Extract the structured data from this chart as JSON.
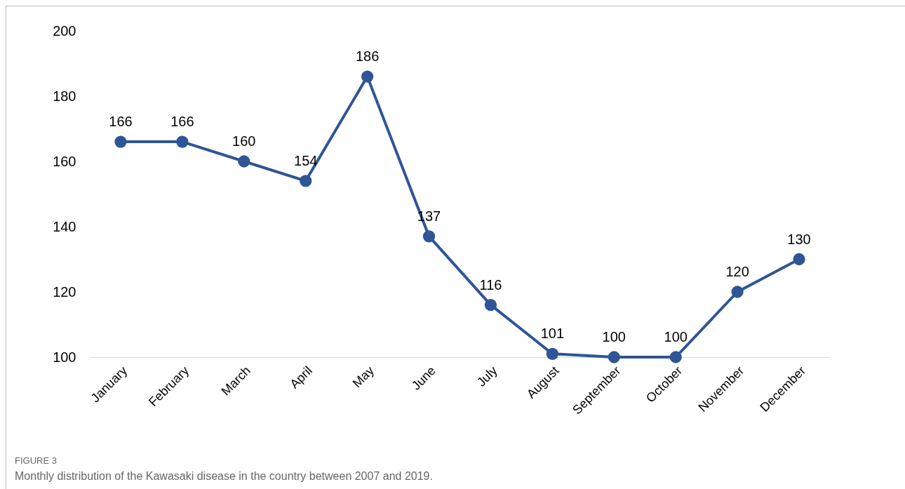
{
  "chart_data": {
    "type": "line",
    "categories": [
      "January",
      "February",
      "March",
      "April",
      "May",
      "June",
      "July",
      "August",
      "September",
      "October",
      "November",
      "December"
    ],
    "series": [
      {
        "color": "#2f5597",
        "values": [
          166,
          166,
          160,
          154,
          186,
          137,
          116,
          101,
          100,
          100,
          120,
          130
        ]
      }
    ],
    "ylim": [
      100,
      200
    ],
    "yticks": [
      100,
      120,
      140,
      160,
      180,
      200
    ],
    "data_labels": true,
    "marker": "circle",
    "annotations": [
      "FIGURE 3",
      "Monthly distribution of the Kawasaki disease in the country between 2007 and 2019."
    ]
  }
}
